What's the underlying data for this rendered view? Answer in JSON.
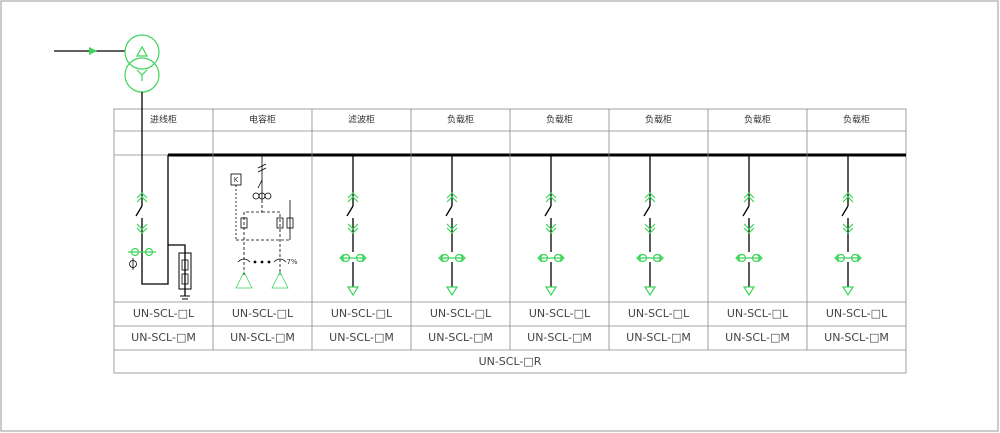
{
  "columns": [
    {
      "header": "进线柜",
      "row_l": "UN-SCL-□L",
      "row_m": "UN-SCL-□M"
    },
    {
      "header": "电容柜",
      "row_l": "UN-SCL-□L",
      "row_m": "UN-SCL-□M"
    },
    {
      "header": "滤波柜",
      "row_l": "UN-SCL-□L",
      "row_m": "UN-SCL-□M"
    },
    {
      "header": "负载柜",
      "row_l": "UN-SCL-□L",
      "row_m": "UN-SCL-□M"
    },
    {
      "header": "负载柜",
      "row_l": "UN-SCL-□L",
      "row_m": "UN-SCL-□M"
    },
    {
      "header": "负载柜",
      "row_l": "UN-SCL-□L",
      "row_m": "UN-SCL-□M"
    },
    {
      "header": "负载柜",
      "row_l": "UN-SCL-□L",
      "row_m": "UN-SCL-□M"
    },
    {
      "header": "负载柜",
      "row_l": "UN-SCL-□L",
      "row_m": "UN-SCL-□M"
    }
  ],
  "footer": "UN-SCL-□R",
  "capacitor_labels": {
    "switch": "K",
    "reactor": "7%"
  }
}
